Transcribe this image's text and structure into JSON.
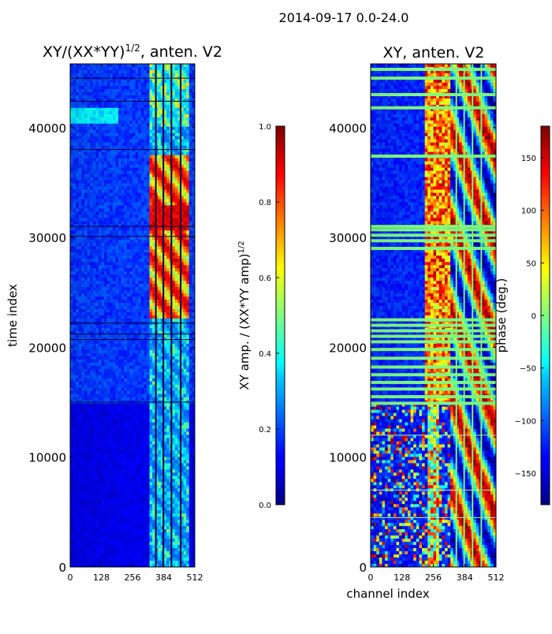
{
  "figure": {
    "suptitle": "2014-09-17 0.0-24.0"
  },
  "chart_data": [
    {
      "type": "heatmap",
      "title": "XY/(XX*YY)^{1/2}, anten. V2",
      "title_main": "XY/(XX*YY)",
      "title_sup": "1/2",
      "title_tail": ", anten. V2",
      "xlabel": "",
      "ylabel": "time index",
      "xlim": [
        0,
        512
      ],
      "ylim": [
        0,
        45800
      ],
      "xticks": [
        "0",
        "128",
        "256",
        "384",
        "512"
      ],
      "xtick_values": [
        0,
        128,
        256,
        384,
        512
      ],
      "yticks": [
        "0",
        "10000",
        "20000",
        "30000",
        "40000"
      ],
      "ytick_values": [
        0,
        10000,
        20000,
        30000,
        40000
      ],
      "colorbar": {
        "label": "XY amp. / (XX*YY amp)^{1/2}",
        "label_main": "XY amp. / (XX*YY amp)",
        "label_sup": "1/2",
        "range": [
          0.0,
          1.0
        ],
        "ticks": [
          "0.0",
          "0.2",
          "0.4",
          "0.6",
          "0.8",
          "1.0"
        ],
        "tick_values": [
          0.0,
          0.2,
          0.4,
          0.6,
          0.8,
          1.0
        ]
      }
    },
    {
      "type": "heatmap",
      "title": "XY, anten. V2",
      "xlabel": "channel index",
      "ylabel": "",
      "xlim": [
        0,
        512
      ],
      "ylim": [
        0,
        45800
      ],
      "xticks": [
        "0",
        "128",
        "256",
        "384",
        "512"
      ],
      "xtick_values": [
        0,
        128,
        256,
        384,
        512
      ],
      "yticks": [
        "0",
        "10000",
        "20000",
        "30000",
        "40000"
      ],
      "ytick_values": [
        0,
        10000,
        20000,
        30000,
        40000
      ],
      "colorbar": {
        "label": "phase (deg.)",
        "range": [
          -180,
          180
        ],
        "ticks": [
          "−150",
          "−100",
          "−50",
          "0",
          "50",
          "100",
          "150"
        ],
        "tick_values": [
          -150,
          -100,
          -50,
          0,
          50,
          100,
          150
        ]
      }
    }
  ]
}
